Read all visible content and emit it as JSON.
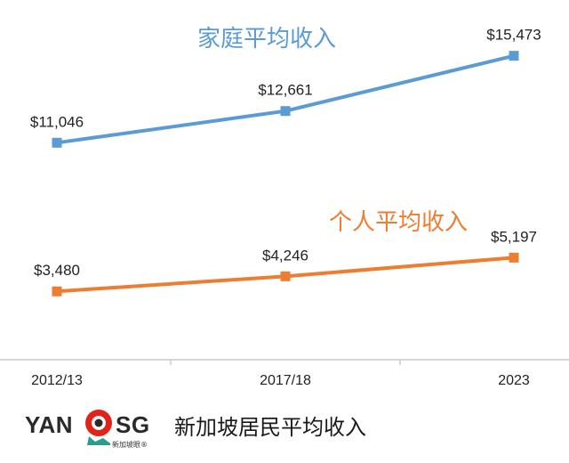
{
  "chart_data": {
    "type": "line",
    "categories": [
      "2012/13",
      "2017/18",
      "2023"
    ],
    "series": [
      {
        "name": "家庭平均收入",
        "values": [
          11046,
          12661,
          15473
        ],
        "labels": [
          "$11,046",
          "$12,661",
          "$15,473"
        ],
        "color": "#5b9bd5"
      },
      {
        "name": "个人平均收入",
        "values": [
          3480,
          4246,
          5197
        ],
        "labels": [
          "$3,480",
          "$4,246",
          "$5,197"
        ],
        "color": "#ed7d31"
      }
    ],
    "ylim": [
      0,
      16500
    ],
    "grid": false,
    "legend": "inline-labels"
  },
  "footer": {
    "logo_left": "YAN",
    "logo_right": "SG",
    "logo_sub": "新加坡眼®",
    "caption": "新加坡居民平均收入"
  }
}
